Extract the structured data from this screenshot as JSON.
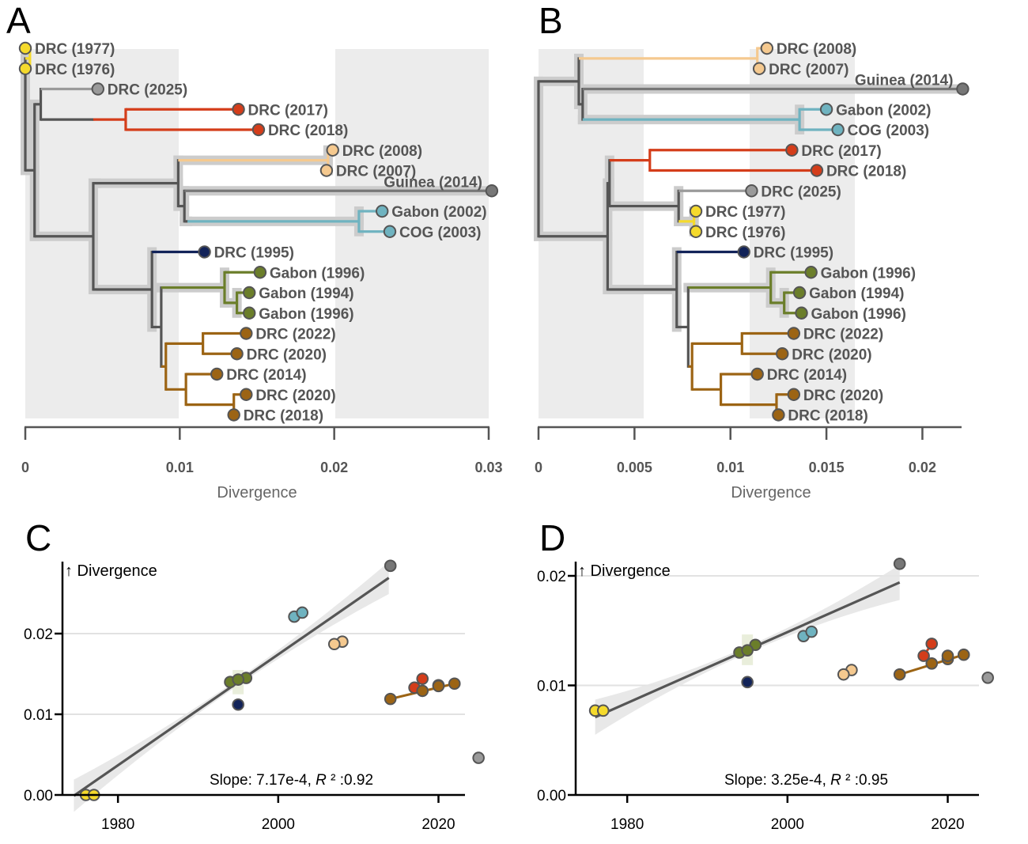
{
  "colors": {
    "dark": "#555555",
    "red": "#d43d1a",
    "peach": "#f5c98f",
    "teal": "#6fb3c0",
    "navy": "#122359",
    "green": "#6b7e2a",
    "brown": "#9c6414",
    "yellow": "#f5da2c",
    "gray": "#9a9a9a",
    "darkgray": "#777777",
    "band": "#ececec",
    "halo": "#cccccc"
  },
  "panels": {
    "A": "A",
    "B": "B",
    "C": "C",
    "D": "D"
  },
  "chart_data": [
    {
      "panel": "A",
      "type": "tree",
      "xlabel": "Divergence",
      "xticks": [
        0,
        0.01,
        0.02,
        0.03
      ],
      "xtick_labels": [
        "0",
        "0.01",
        "0.02",
        "0.03"
      ],
      "xlim": [
        0,
        0.03
      ],
      "nodes": [
        {
          "id": "r",
          "x": 0.0,
          "parent": null,
          "halo": true
        },
        {
          "id": "a",
          "x": 0.0003,
          "parent": "r",
          "color": "yellow"
        },
        {
          "id": "L_DRC1977",
          "x": 0.0,
          "parent": "a",
          "label": "DRC (1977)",
          "color": "yellow"
        },
        {
          "id": "L_DRC1976",
          "x": 0.0,
          "parent": "a",
          "label": "DRC (1976)",
          "color": "yellow"
        },
        {
          "id": "b",
          "x": 0.0006,
          "parent": "r",
          "halo": true
        },
        {
          "id": "c",
          "x": 0.001,
          "parent": "b",
          "color": "dark"
        },
        {
          "id": "L_DRC2025",
          "x": 0.0047,
          "parent": "c",
          "label": "DRC (2025)",
          "color": "gray"
        },
        {
          "id": "d",
          "x": 0.0044,
          "parent": "c",
          "color": "dark"
        },
        {
          "id": "e",
          "x": 0.0065,
          "parent": "d",
          "color": "red"
        },
        {
          "id": "L_DRC2017",
          "x": 0.0138,
          "parent": "e",
          "label": "DRC (2017)",
          "color": "red"
        },
        {
          "id": "L_DRC2018a",
          "x": 0.0151,
          "parent": "e",
          "label": "DRC (2018)",
          "color": "red"
        },
        {
          "id": "f",
          "x": 0.0044,
          "parent": "b",
          "halo": true
        },
        {
          "id": "g",
          "x": 0.0046,
          "parent": "f",
          "halo": true
        },
        {
          "id": "h",
          "x": 0.0099,
          "parent": "g",
          "halo": true
        },
        {
          "id": "i",
          "x": 0.0196,
          "parent": "h",
          "color": "peach",
          "halo": true
        },
        {
          "id": "L_DRC2008",
          "x": 0.0199,
          "parent": "i",
          "label": "DRC (2008)",
          "color": "peach"
        },
        {
          "id": "L_DRC2007",
          "x": 0.0195,
          "parent": "i",
          "label": "DRC (2007)",
          "color": "peach"
        },
        {
          "id": "j",
          "x": 0.0103,
          "parent": "h",
          "halo": true
        },
        {
          "id": "L_Guinea2014",
          "x": 0.0302,
          "parent": "j",
          "label": "Guinea (2014)",
          "color": "darkgray",
          "halo": true,
          "labelLeft": true
        },
        {
          "id": "k",
          "x": 0.0105,
          "parent": "j",
          "halo": true
        },
        {
          "id": "l",
          "x": 0.0216,
          "parent": "k",
          "color": "teal",
          "halo": true
        },
        {
          "id": "L_Gabon2002",
          "x": 0.0231,
          "parent": "l",
          "label": "Gabon (2002)",
          "color": "teal"
        },
        {
          "id": "L_COG2003",
          "x": 0.0236,
          "parent": "l",
          "label": "COG (2003)",
          "color": "teal"
        },
        {
          "id": "m",
          "x": 0.0046,
          "parent": "f",
          "color": "dark"
        },
        {
          "id": "n",
          "x": 0.0082,
          "parent": "m",
          "halo": true
        },
        {
          "id": "L_DRC1995",
          "x": 0.0116,
          "parent": "n",
          "label": "DRC (1995)",
          "color": "navy"
        },
        {
          "id": "o",
          "x": 0.0088,
          "parent": "n",
          "color": "dark"
        },
        {
          "id": "p",
          "x": 0.0129,
          "parent": "o",
          "color": "green",
          "halo": true
        },
        {
          "id": "L_Gabon1996a",
          "x": 0.0152,
          "parent": "p",
          "label": "Gabon (1996)",
          "color": "green"
        },
        {
          "id": "q",
          "x": 0.0137,
          "parent": "p",
          "color": "green",
          "halo": true
        },
        {
          "id": "L_Gabon1994",
          "x": 0.0145,
          "parent": "q",
          "label": "Gabon (1994)",
          "color": "green"
        },
        {
          "id": "L_Gabon1996b",
          "x": 0.0145,
          "parent": "q",
          "label": "Gabon (1996)",
          "color": "green"
        },
        {
          "id": "s",
          "x": 0.0091,
          "parent": "o",
          "color": "brown"
        },
        {
          "id": "t",
          "x": 0.0115,
          "parent": "s",
          "color": "brown"
        },
        {
          "id": "L_DRC2022",
          "x": 0.0143,
          "parent": "t",
          "label": "DRC (2022)",
          "color": "brown"
        },
        {
          "id": "L_DRC2020a",
          "x": 0.0137,
          "parent": "t",
          "label": "DRC (2020)",
          "color": "brown"
        },
        {
          "id": "u",
          "x": 0.0104,
          "parent": "s",
          "color": "brown"
        },
        {
          "id": "L_DRC2014",
          "x": 0.0124,
          "parent": "u",
          "label": "DRC (2014)",
          "color": "brown"
        },
        {
          "id": "v",
          "x": 0.0135,
          "parent": "u",
          "color": "brown"
        },
        {
          "id": "L_DRC2020b",
          "x": 0.0143,
          "parent": "v",
          "label": "DRC (2020)",
          "color": "brown"
        },
        {
          "id": "L_DRC2018b",
          "x": 0.0135,
          "parent": "v",
          "label": "DRC (2018)",
          "color": "brown"
        }
      ]
    },
    {
      "panel": "B",
      "type": "tree",
      "xlabel": "Divergence",
      "xticks": [
        0,
        0.005,
        0.01,
        0.015,
        0.02
      ],
      "xtick_labels": [
        "0",
        "0.005",
        "0.01",
        "0.015",
        "0.02"
      ],
      "xlim": [
        0,
        0.022
      ],
      "nodes": [
        {
          "id": "r",
          "x": 0.0,
          "parent": null,
          "halo": true
        },
        {
          "id": "a",
          "x": 0.0021,
          "parent": "r",
          "halo": true
        },
        {
          "id": "b",
          "x": 0.0114,
          "parent": "a",
          "color": "peach"
        },
        {
          "id": "L_DRC2008",
          "x": 0.0119,
          "parent": "b",
          "label": "DRC (2008)",
          "color": "peach"
        },
        {
          "id": "L_DRC2007",
          "x": 0.0115,
          "parent": "b",
          "label": "DRC (2007)",
          "color": "peach"
        },
        {
          "id": "c",
          "x": 0.0023,
          "parent": "a",
          "halo": true
        },
        {
          "id": "L_Guinea2014",
          "x": 0.0221,
          "parent": "c",
          "label": "Guinea (2014)",
          "color": "darkgray",
          "halo": true,
          "labelLeft": true
        },
        {
          "id": "d",
          "x": 0.0136,
          "parent": "c",
          "color": "teal",
          "halo": true
        },
        {
          "id": "L_Gabon2002",
          "x": 0.015,
          "parent": "d",
          "label": "Gabon (2002)",
          "color": "teal"
        },
        {
          "id": "L_COG2003",
          "x": 0.0156,
          "parent": "d",
          "label": "COG (2003)",
          "color": "teal"
        },
        {
          "id": "e",
          "x": 0.0036,
          "parent": "r",
          "halo": true
        },
        {
          "id": "f",
          "x": 0.0037,
          "parent": "e",
          "halo": true
        },
        {
          "id": "g",
          "x": 0.0058,
          "parent": "f",
          "color": "red"
        },
        {
          "id": "L_DRC2017",
          "x": 0.0132,
          "parent": "g",
          "label": "DRC (2017)",
          "color": "red"
        },
        {
          "id": "L_DRC2018a",
          "x": 0.0145,
          "parent": "g",
          "label": "DRC (2018)",
          "color": "red"
        },
        {
          "id": "h",
          "x": 0.0073,
          "parent": "f",
          "halo": true
        },
        {
          "id": "L_DRC2025",
          "x": 0.0111,
          "parent": "h",
          "label": "DRC (2025)",
          "color": "gray"
        },
        {
          "id": "i",
          "x": 0.0081,
          "parent": "h",
          "color": "yellow",
          "halo": true
        },
        {
          "id": "L_DRC1977",
          "x": 0.0082,
          "parent": "i",
          "label": "DRC (1977)",
          "color": "yellow"
        },
        {
          "id": "L_DRC1976",
          "x": 0.0082,
          "parent": "i",
          "label": "DRC (1976)",
          "color": "yellow"
        },
        {
          "id": "j",
          "x": 0.0072,
          "parent": "e",
          "halo": true
        },
        {
          "id": "L_DRC1995",
          "x": 0.0107,
          "parent": "j",
          "label": "DRC (1995)",
          "color": "navy"
        },
        {
          "id": "k",
          "x": 0.0078,
          "parent": "j",
          "color": "dark"
        },
        {
          "id": "l",
          "x": 0.0121,
          "parent": "k",
          "color": "green",
          "halo": true
        },
        {
          "id": "L_Gabon1996a",
          "x": 0.0142,
          "parent": "l",
          "label": "Gabon (1996)",
          "color": "green"
        },
        {
          "id": "m",
          "x": 0.0128,
          "parent": "l",
          "color": "green",
          "halo": true
        },
        {
          "id": "L_Gabon1994",
          "x": 0.0136,
          "parent": "m",
          "label": "Gabon (1994)",
          "color": "green"
        },
        {
          "id": "L_Gabon1996b",
          "x": 0.0137,
          "parent": "m",
          "label": "Gabon (1996)",
          "color": "green"
        },
        {
          "id": "n",
          "x": 0.008,
          "parent": "k",
          "color": "brown"
        },
        {
          "id": "o",
          "x": 0.0106,
          "parent": "n",
          "color": "brown"
        },
        {
          "id": "L_DRC2022",
          "x": 0.0133,
          "parent": "o",
          "label": "DRC (2022)",
          "color": "brown"
        },
        {
          "id": "L_DRC2020a",
          "x": 0.0127,
          "parent": "o",
          "label": "DRC (2020)",
          "color": "brown"
        },
        {
          "id": "p",
          "x": 0.0095,
          "parent": "n",
          "color": "brown"
        },
        {
          "id": "L_DRC2014",
          "x": 0.0114,
          "parent": "p",
          "label": "DRC (2014)",
          "color": "brown"
        },
        {
          "id": "q",
          "x": 0.0124,
          "parent": "p",
          "color": "brown"
        },
        {
          "id": "L_DRC2020b",
          "x": 0.0133,
          "parent": "q",
          "label": "DRC (2020)",
          "color": "brown"
        },
        {
          "id": "L_DRC2018b",
          "x": 0.0125,
          "parent": "q",
          "label": "DRC (2018)",
          "color": "brown"
        }
      ]
    },
    {
      "panel": "C",
      "type": "scatter",
      "ylabel": "↑ Divergence",
      "xlim": [
        1973,
        2026
      ],
      "ylim": [
        0,
        0.028
      ],
      "xticks": [
        1980,
        2000,
        2020
      ],
      "yticks": [
        0.0,
        0.01,
        0.02
      ],
      "ytick_labels": [
        "0.00",
        "0.01",
        "0.02"
      ],
      "annotation_pre": "Slope: 7.17e-4, ",
      "annotation_r": "R",
      "annotation_post": " ² :0.92",
      "fit": {
        "x": [
          1974.5,
          2013.8
        ],
        "y": [
          -0.0001,
          0.0269
        ]
      },
      "points": [
        {
          "x": 1976,
          "y": 0.0,
          "color": "yellow"
        },
        {
          "x": 1977,
          "y": 0.0,
          "color": "yellow"
        },
        {
          "x": 2025,
          "y": 0.0046,
          "color": "gray"
        },
        {
          "x": 2017,
          "y": 0.0133,
          "color": "red"
        },
        {
          "x": 2018,
          "y": 0.0144,
          "color": "red"
        },
        {
          "x": 2008,
          "y": 0.019,
          "color": "peach"
        },
        {
          "x": 2007,
          "y": 0.0187,
          "color": "peach"
        },
        {
          "x": 2014,
          "y": 0.0284,
          "color": "darkgray"
        },
        {
          "x": 2002,
          "y": 0.0221,
          "color": "teal"
        },
        {
          "x": 2003,
          "y": 0.0226,
          "color": "teal"
        },
        {
          "x": 1995,
          "y": 0.0112,
          "color": "navy"
        },
        {
          "x": 1996,
          "y": 0.0145,
          "color": "green"
        },
        {
          "x": 1994,
          "y": 0.014,
          "color": "green"
        },
        {
          "x": 1995,
          "y": 0.0143,
          "color": "green"
        },
        {
          "x": 2022,
          "y": 0.0138,
          "color": "brown"
        },
        {
          "x": 2020,
          "y": 0.0136,
          "color": "brown"
        },
        {
          "x": 2014,
          "y": 0.0119,
          "color": "brown"
        },
        {
          "x": 2020,
          "y": 0.0135,
          "color": "brown"
        },
        {
          "x": 2018,
          "y": 0.0129,
          "color": "brown"
        }
      ]
    },
    {
      "panel": "D",
      "type": "scatter",
      "ylabel": "↑ Divergence",
      "xlim": [
        1973,
        2026
      ],
      "ylim": [
        0,
        0.021
      ],
      "xticks": [
        1980,
        2000,
        2020
      ],
      "yticks": [
        0.0,
        0.01,
        0.02
      ],
      "ytick_labels": [
        "0.00",
        "0.01",
        "0.02"
      ],
      "annotation_pre": "Slope: 3.25e-4, ",
      "annotation_r": "R",
      "annotation_post": " ² :0.95",
      "fit": {
        "x": [
          1976,
          2014
        ],
        "y": [
          0.0071,
          0.0194
        ]
      },
      "points": [
        {
          "x": 1976,
          "y": 0.0077,
          "color": "yellow"
        },
        {
          "x": 1977,
          "y": 0.0077,
          "color": "yellow"
        },
        {
          "x": 2025,
          "y": 0.0107,
          "color": "gray"
        },
        {
          "x": 2017,
          "y": 0.0127,
          "color": "red"
        },
        {
          "x": 2018,
          "y": 0.0138,
          "color": "red"
        },
        {
          "x": 2008,
          "y": 0.0114,
          "color": "peach"
        },
        {
          "x": 2007,
          "y": 0.011,
          "color": "peach"
        },
        {
          "x": 2014,
          "y": 0.0211,
          "color": "darkgray"
        },
        {
          "x": 2002,
          "y": 0.0145,
          "color": "teal"
        },
        {
          "x": 2003,
          "y": 0.0149,
          "color": "teal"
        },
        {
          "x": 1995,
          "y": 0.0103,
          "color": "navy"
        },
        {
          "x": 1996,
          "y": 0.0137,
          "color": "green"
        },
        {
          "x": 1994,
          "y": 0.013,
          "color": "green"
        },
        {
          "x": 1995,
          "y": 0.0132,
          "color": "green"
        },
        {
          "x": 2022,
          "y": 0.0128,
          "color": "brown"
        },
        {
          "x": 2020,
          "y": 0.0124,
          "color": "brown"
        },
        {
          "x": 2014,
          "y": 0.011,
          "color": "brown"
        },
        {
          "x": 2020,
          "y": 0.0127,
          "color": "brown"
        },
        {
          "x": 2018,
          "y": 0.012,
          "color": "brown"
        }
      ]
    }
  ]
}
